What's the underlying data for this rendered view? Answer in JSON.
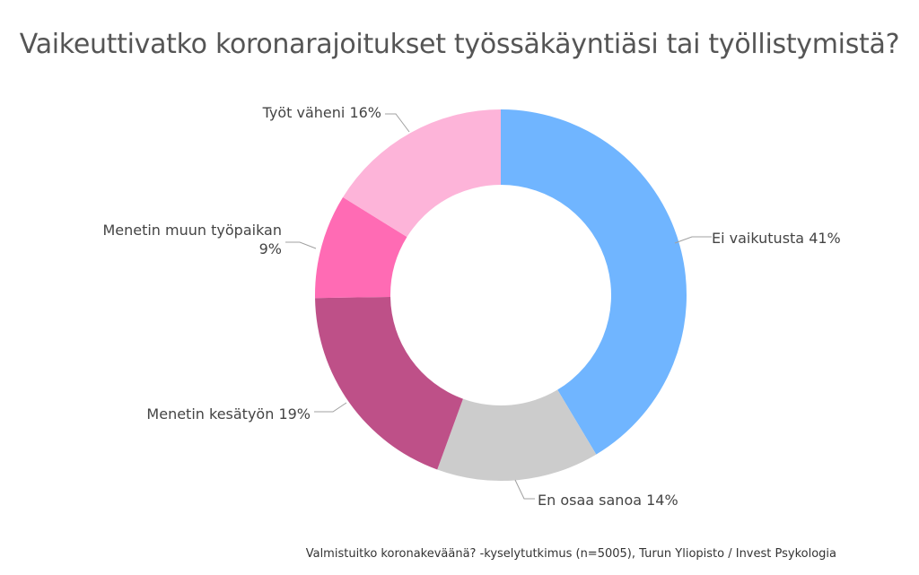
{
  "title": "Vaikeuttivatko koronarajoitukset työssäkäyntiäsi tai työllistymistä?",
  "footer": "Valmistuitko koronakeväänä? -kyselytutkimus (n=5005), Turun Yliopisto / Invest Psykologia",
  "chart_data": {
    "type": "pie",
    "donut": true,
    "title": "Vaikeuttivatko koronarajoitukset työssäkäyntiäsi tai työllistymistä?",
    "labels_on_chart": true,
    "slices": [
      {
        "label": "Ei vaikutusta",
        "value": 41,
        "text": "Ei vaikutusta 41%",
        "color": "#70b5ff"
      },
      {
        "label": "En osaa sanoa",
        "value": 14,
        "text": "En osaa sanoa 14%",
        "color": "#cccccc"
      },
      {
        "label": "Menetin kesätyön",
        "value": 19,
        "text": "Menetin kesätyön 19%",
        "color": "#be5088"
      },
      {
        "label": "Menetin muun työpaikan",
        "value": 9,
        "text": "Menetin muun työpaikan",
        "text2": "9%",
        "color": "#ff6bb4"
      },
      {
        "label": "Työt väheni",
        "value": 16,
        "text": "Työt väheni 16%",
        "color": "#fdb4d9"
      }
    ]
  }
}
